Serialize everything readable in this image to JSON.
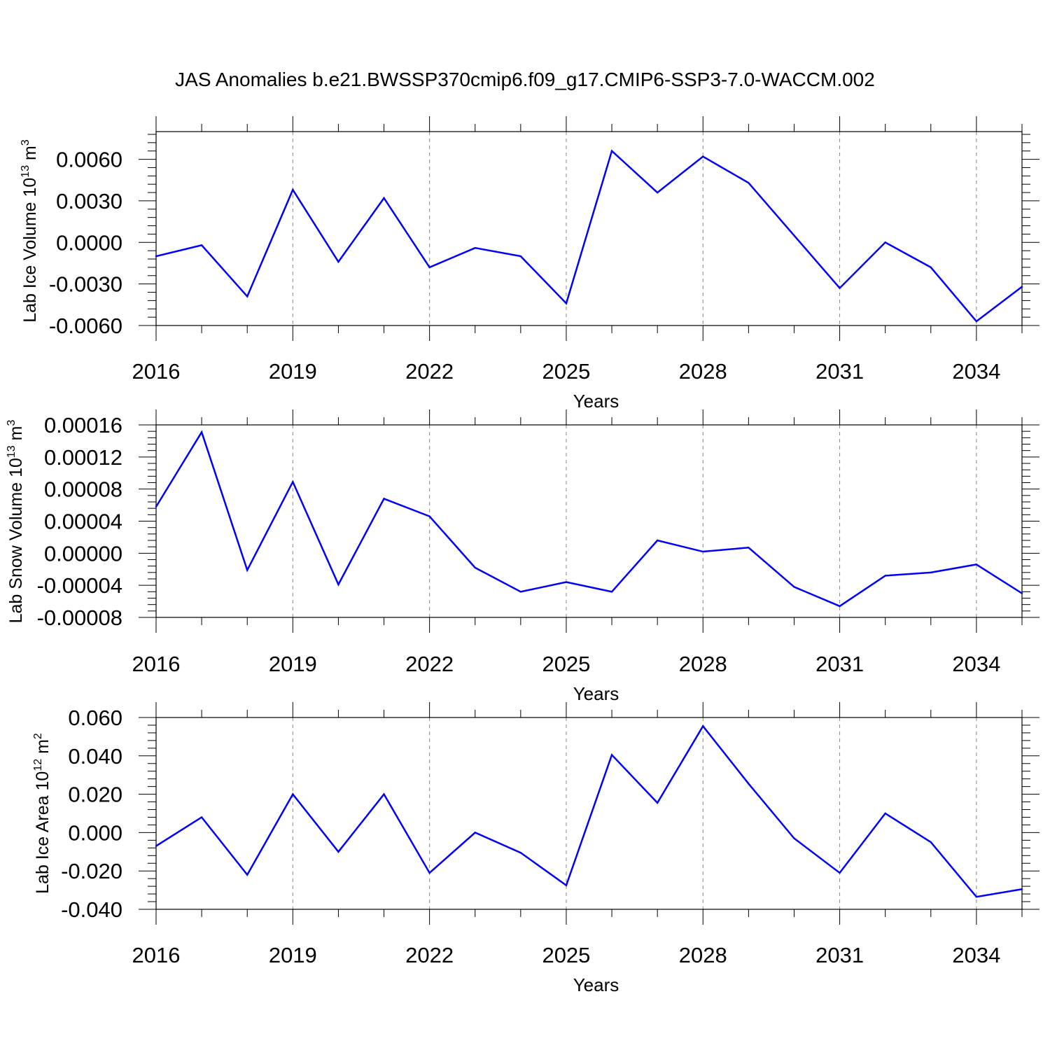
{
  "title": "JAS Anomalies b.e21.BWSSP370cmip6.f09_g17.CMIP6-SSP3-7.0-WACCM.002",
  "colors": {
    "series": "#0000ff",
    "axis": "#000000",
    "grid": "#888888"
  },
  "chart_data": [
    {
      "type": "line",
      "xlabel": "Years",
      "ylabel": "Lab Ice Volume 10",
      "ylabel_exp": "13",
      "ylabel_unit": " m",
      "ylabel_unit_exp": "3",
      "x": [
        2016,
        2017,
        2018,
        2019,
        2020,
        2021,
        2022,
        2023,
        2024,
        2025,
        2026,
        2027,
        2028,
        2029,
        2030,
        2031,
        2032,
        2033,
        2034,
        2035
      ],
      "series": [
        {
          "values": [
            -0.001,
            -0.0002,
            -0.0039,
            0.0038,
            -0.0014,
            0.0032,
            -0.0018,
            -0.0004,
            -0.001,
            -0.0044,
            0.0066,
            0.0036,
            0.0062,
            0.0043,
            0.0005,
            -0.0033,
            0.0,
            -0.0018,
            -0.0057,
            -0.0032
          ]
        }
      ],
      "xlim": [
        2016,
        2035
      ],
      "ylim": [
        -0.006,
        0.008
      ],
      "yticks": [
        -0.006,
        -0.003,
        0.0,
        0.003,
        0.006
      ],
      "ytick_labels": [
        "-0.0060",
        "-0.0030",
        "0.0000",
        "0.0030",
        "0.0060"
      ],
      "xticks": [
        2016,
        2019,
        2022,
        2025,
        2028,
        2031,
        2034
      ],
      "xtick_labels": [
        "2016",
        "2019",
        "2022",
        "2025",
        "2028",
        "2031",
        "2034"
      ],
      "grid": "vertical dashed at major x ticks"
    },
    {
      "type": "line",
      "xlabel": "Years",
      "ylabel": "Lab Snow Volume 10",
      "ylabel_exp": "13",
      "ylabel_unit": " m",
      "ylabel_unit_exp": "3",
      "x": [
        2016,
        2017,
        2018,
        2019,
        2020,
        2021,
        2022,
        2023,
        2024,
        2025,
        2026,
        2027,
        2028,
        2029,
        2030,
        2031,
        2032,
        2033,
        2034,
        2035
      ],
      "series": [
        {
          "values": [
            5.8e-05,
            0.000151,
            -2.1e-05,
            8.9e-05,
            -3.9e-05,
            6.8e-05,
            4.6e-05,
            -1.8e-05,
            -4.8e-05,
            -3.6e-05,
            -4.8e-05,
            1.6e-05,
            2e-06,
            7e-06,
            -4.2e-05,
            -6.6e-05,
            -2.8e-05,
            -2.4e-05,
            -1.4e-05,
            -5e-05
          ]
        }
      ],
      "xlim": [
        2016,
        2035
      ],
      "ylim": [
        -8e-05,
        0.00016
      ],
      "yticks": [
        -8e-05,
        -4e-05,
        0.0,
        4e-05,
        8e-05,
        0.00012,
        0.00016
      ],
      "ytick_labels": [
        "-0.00008",
        "-0.00004",
        "0.00000",
        "0.00004",
        "0.00008",
        "0.00012",
        "0.00016"
      ],
      "xticks": [
        2016,
        2019,
        2022,
        2025,
        2028,
        2031,
        2034
      ],
      "xtick_labels": [
        "2016",
        "2019",
        "2022",
        "2025",
        "2028",
        "2031",
        "2034"
      ],
      "grid": "vertical dashed at major x ticks"
    },
    {
      "type": "line",
      "xlabel": "Years",
      "ylabel": "Lab Ice Area 10",
      "ylabel_exp": "12",
      "ylabel_unit": " m",
      "ylabel_unit_exp": "2",
      "x": [
        2016,
        2017,
        2018,
        2019,
        2020,
        2021,
        2022,
        2023,
        2024,
        2025,
        2026,
        2027,
        2028,
        2029,
        2030,
        2031,
        2032,
        2033,
        2034,
        2035
      ],
      "series": [
        {
          "values": [
            -0.007,
            0.008,
            -0.022,
            0.02,
            -0.01,
            0.02,
            -0.021,
            0.0,
            -0.0105,
            -0.0275,
            0.0405,
            0.0155,
            0.0555,
            0.0255,
            -0.003,
            -0.021,
            0.01,
            -0.005,
            -0.0335,
            -0.0295
          ]
        }
      ],
      "xlim": [
        2016,
        2035
      ],
      "ylim": [
        -0.04,
        0.06
      ],
      "yticks": [
        -0.04,
        -0.02,
        0.0,
        0.02,
        0.04,
        0.06
      ],
      "ytick_labels": [
        "-0.040",
        "-0.020",
        "0.000",
        "0.020",
        "0.040",
        "0.060"
      ],
      "xticks": [
        2016,
        2019,
        2022,
        2025,
        2028,
        2031,
        2034
      ],
      "xtick_labels": [
        "2016",
        "2019",
        "2022",
        "2025",
        "2028",
        "2031",
        "2034"
      ],
      "grid": "vertical dashed at major x ticks"
    }
  ]
}
